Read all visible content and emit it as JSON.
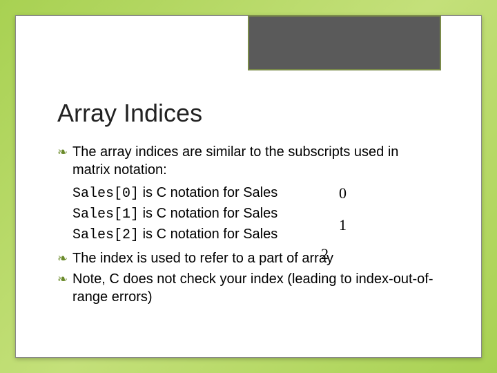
{
  "slide": {
    "title": "Array Indices",
    "background_gradient": [
      "#a8d152",
      "#c4e07a",
      "#a8d152"
    ],
    "frame_bg": "#ffffff",
    "header_box_bg": "#5a5a5a",
    "header_box_border": "#7a8a4a",
    "bullet_color": "#6a8a2a",
    "bullet_glyph": "❧",
    "title_fontsize": 36,
    "body_fontsize": 20,
    "bullets": [
      "The array indices are similar to the subscripts used in matrix notation:",
      "The index is used to refer to a part of array",
      "Note, C does not check your index (leading to index-out-of-range errors)"
    ],
    "notation_lines": [
      {
        "code": "Sales[0]",
        "rest": " is C notation for Sales"
      },
      {
        "code": "Sales[1]",
        "rest": " is C notation for Sales"
      },
      {
        "code": "Sales[2]",
        "rest": " is C notation for Sales"
      }
    ],
    "float_numbers": [
      "0",
      "1",
      "2"
    ]
  }
}
